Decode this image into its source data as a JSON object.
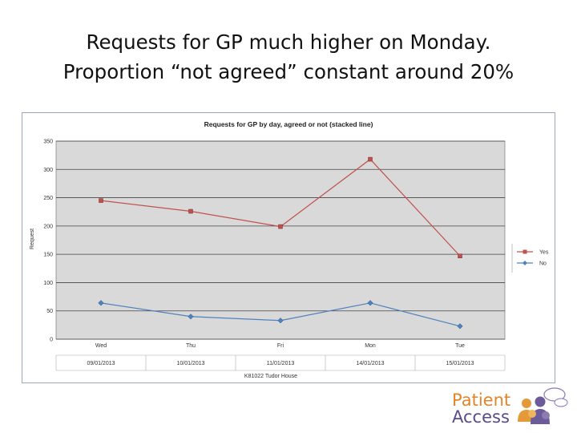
{
  "slide": {
    "title_line1": "Requests for GP much higher on Monday.",
    "title_line2": "Proportion “not agreed” constant around 20%"
  },
  "logo": {
    "word1": "Patient",
    "word2": "Access"
  },
  "colors": {
    "yes": "#c0504d",
    "no": "#4f81bd",
    "plot_bg": "#d9d9d9"
  },
  "chart_data": {
    "type": "line",
    "title": "Requests for GP by day, agreed or not (stacked line)",
    "ylabel": "Request",
    "xlabel": "K81022 Tudor House",
    "ylim": [
      0,
      350
    ],
    "yticks": [
      0,
      50,
      100,
      150,
      200,
      250,
      300,
      350
    ],
    "categories": [
      "Wed",
      "Thu",
      "Fri",
      "Mon",
      "Tue"
    ],
    "dates": [
      "09/01/2013",
      "10/01/2013",
      "11/01/2013",
      "14/01/2013",
      "15/01/2013"
    ],
    "grid": true,
    "legend_position": "right",
    "series": [
      {
        "name": "Yes",
        "values": [
          245,
          226,
          199,
          318,
          147
        ],
        "color": "#c0504d",
        "marker": "square"
      },
      {
        "name": "No",
        "values": [
          64,
          40,
          33,
          64,
          23
        ],
        "color": "#4f81bd",
        "marker": "diamond"
      }
    ]
  }
}
